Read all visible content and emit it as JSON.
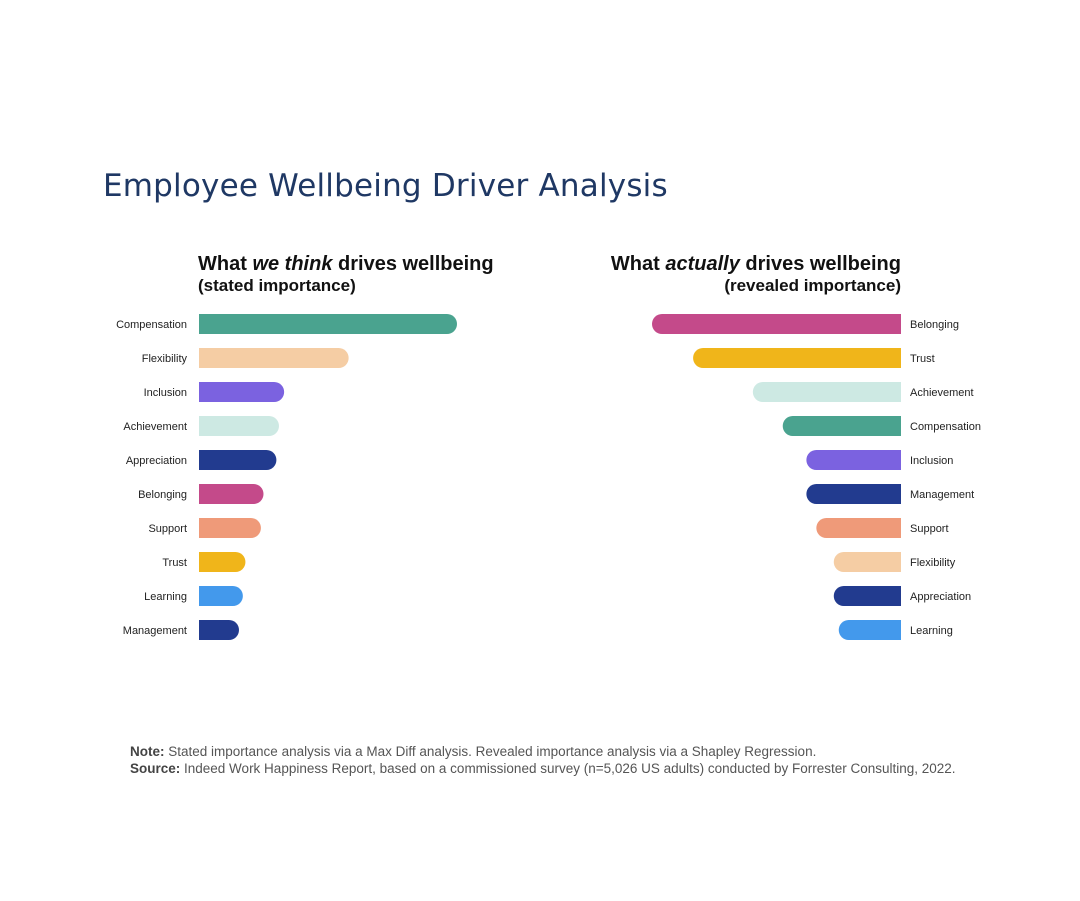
{
  "page": {
    "title": "Employee Wellbeing Driver Analysis"
  },
  "colors": {
    "Compensation": "#4aa38f",
    "Flexibility": "#f5cda4",
    "Inclusion": "#7b62e0",
    "Achievement": "#cde9e3",
    "Appreciation": "#223b8f",
    "Belonging": "#c44a8a",
    "Support": "#ef9a79",
    "Trust": "#f0b51a",
    "Learning": "#4399ec",
    "Management": "#223b8f"
  },
  "chart_data": [
    {
      "type": "bar",
      "orientation": "horizontal",
      "direction": "left-to-right",
      "title_prefix": "What ",
      "title_emphasis": "we think",
      "title_suffix": " drives wellbeing",
      "subtitle": "(stated importance)",
      "categories": [
        "Compensation",
        "Flexibility",
        "Inclusion",
        "Achievement",
        "Appreciation",
        "Belonging",
        "Support",
        "Trust",
        "Learning",
        "Management"
      ],
      "values": [
        100,
        58,
        33,
        31,
        30,
        25,
        24,
        18,
        17,
        15.5
      ],
      "value_scale": "relative",
      "xlim": [
        0,
        100
      ],
      "grid": false,
      "legend": "none"
    },
    {
      "type": "bar",
      "orientation": "horizontal",
      "direction": "right-to-left",
      "title_prefix": "What ",
      "title_emphasis": "actually",
      "title_suffix": " drives wellbeing",
      "subtitle": "(revealed importance)",
      "categories": [
        "Belonging",
        "Trust",
        "Achievement",
        "Compensation",
        "Inclusion",
        "Management",
        "Support",
        "Flexibility",
        "Appreciation",
        "Learning"
      ],
      "values": [
        100,
        83.5,
        59.5,
        47.5,
        38,
        38,
        34,
        27,
        27,
        25
      ],
      "value_scale": "relative",
      "xlim": [
        0,
        100
      ],
      "grid": false,
      "legend": "none"
    }
  ],
  "footnote": {
    "note_label": "Note:",
    "note_text": " Stated importance analysis via a Max Diff analysis. Revealed importance analysis via a Shapley Regression.",
    "source_label": "Source:",
    "source_text": " Indeed Work Happiness Report, based on a commissioned survey (n=5,026 US adults) conducted by Forrester Consulting, 2022."
  }
}
